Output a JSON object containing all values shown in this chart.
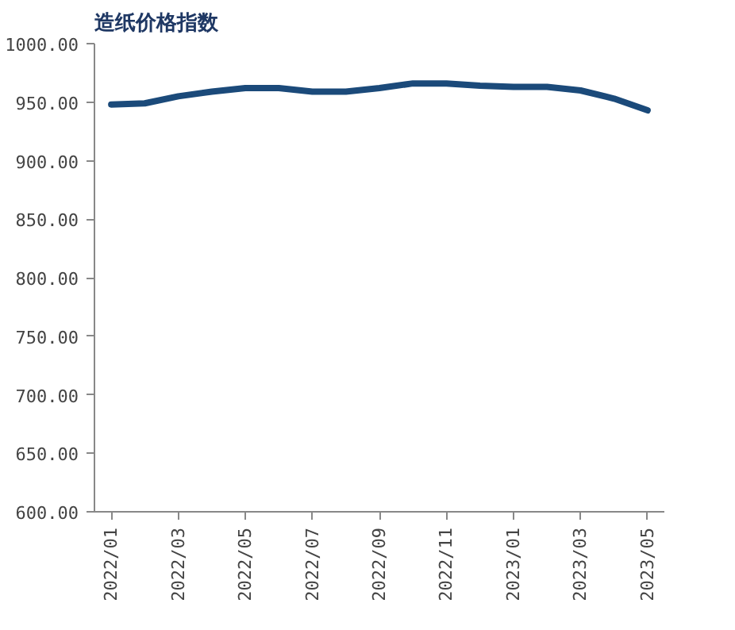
{
  "chart_data": {
    "type": "line",
    "title": "造纸价格指数",
    "categories": [
      "2022/01",
      null,
      "2022/03",
      null,
      "2022/05",
      null,
      "2022/07",
      null,
      "2022/09",
      null,
      "2022/11",
      null,
      "2023/01",
      null,
      "2023/03",
      null,
      "2023/05"
    ],
    "series": [
      {
        "color": "#1b4a7a",
        "values": [
          948,
          949,
          955,
          959,
          962,
          962,
          959,
          959,
          962,
          966,
          966,
          964,
          963,
          963,
          960,
          953,
          943
        ]
      }
    ],
    "ylim": [
      600,
      1000
    ],
    "yticks": [
      {
        "value": 600,
        "label": "600.00"
      },
      {
        "value": 650,
        "label": "650.00"
      },
      {
        "value": 700,
        "label": "700.00"
      },
      {
        "value": 750,
        "label": "750.00"
      },
      {
        "value": 800,
        "label": "800.00"
      },
      {
        "value": 850,
        "label": "850.00"
      },
      {
        "value": 900,
        "label": "900.00"
      },
      {
        "value": 950,
        "label": "950.00"
      },
      {
        "value": 1000,
        "label": "1000.00"
      }
    ],
    "grid": false,
    "marker": "none",
    "line_style": "solid"
  }
}
